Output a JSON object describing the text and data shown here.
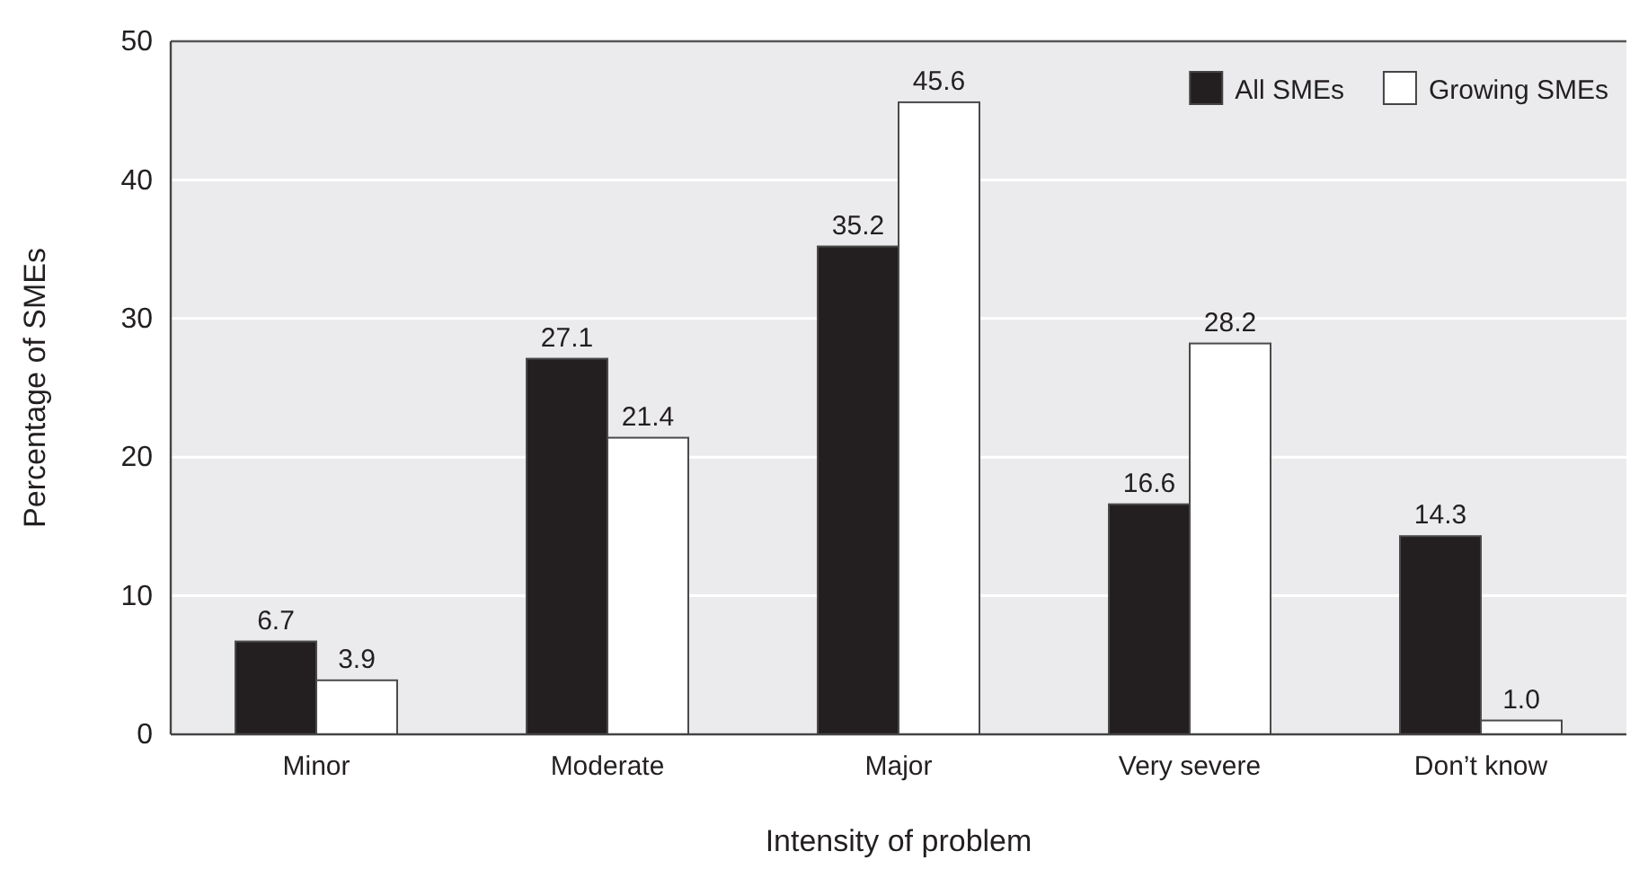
{
  "chart_data": {
    "type": "bar",
    "xlabel": "Intensity of problem",
    "ylabel": "Percentage of SMEs",
    "categories": [
      "Minor",
      "Moderate",
      "Major",
      "Very severe",
      "Don’t know"
    ],
    "series": [
      {
        "name": "All SMEs",
        "color": "#231f20",
        "values": [
          6.7,
          27.1,
          35.2,
          16.6,
          14.3
        ],
        "value_labels": [
          "6.7",
          "27.1",
          "35.2",
          "16.6",
          "14.3"
        ]
      },
      {
        "name": "Growing SMEs",
        "color": "#ffffff",
        "values": [
          3.9,
          21.4,
          45.6,
          28.2,
          1.0
        ],
        "value_labels": [
          "3.9",
          "21.4",
          "45.6",
          "28.2",
          "1.0"
        ]
      }
    ],
    "ylim": [
      0,
      50
    ],
    "yticks": [
      0,
      10,
      20,
      30,
      40,
      50
    ],
    "grid": "y",
    "legend": "top right"
  }
}
